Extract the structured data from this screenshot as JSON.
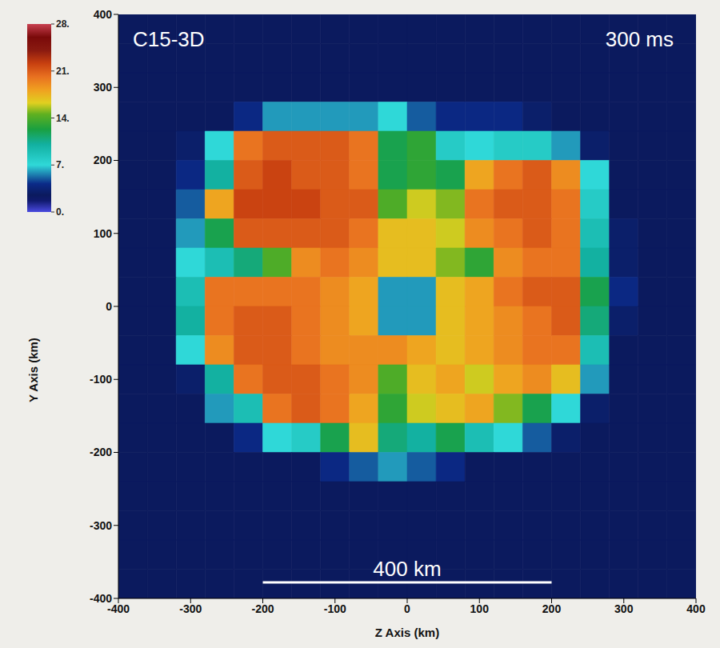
{
  "chart_data": {
    "type": "heatmap",
    "title": "C15-3D",
    "subtitle": "300 ms",
    "x_label": "Z Axis (km)",
    "y_label": "Y Axis (km)",
    "xlim": [
      -400,
      400
    ],
    "ylim": [
      -400,
      400
    ],
    "xticks": [
      -400,
      -300,
      -200,
      -100,
      0,
      100,
      200,
      300,
      400
    ],
    "yticks": [
      -400,
      -300,
      -200,
      -100,
      0,
      100,
      200,
      300,
      400
    ],
    "tick_labels": true,
    "grid": false,
    "scale_bar": {
      "label": "400 km",
      "z": [
        -200,
        200
      ],
      "y": -378
    },
    "colorbar": {
      "range": [
        0,
        28
      ],
      "ticks": [
        {
          "value": 0,
          "label": "0."
        },
        {
          "value": 7,
          "label": "7."
        },
        {
          "value": 14,
          "label": "14."
        },
        {
          "value": 21,
          "label": "21."
        },
        {
          "value": 28,
          "label": "28."
        }
      ]
    },
    "z_edges": [
      -400,
      -360,
      -320,
      -280,
      -240,
      -200,
      -160,
      -120,
      -80,
      -40,
      0,
      40,
      80,
      120,
      160,
      200,
      240,
      280,
      320,
      360,
      400
    ],
    "y_edges": [
      400,
      360,
      320,
      280,
      240,
      200,
      160,
      120,
      80,
      40,
      0,
      -40,
      -80,
      -120,
      -160,
      -200,
      -240,
      -280,
      -320,
      -360,
      -400
    ],
    "cells": [
      [
        2.5,
        2.5,
        2.5,
        2.5,
        2.5,
        2.5,
        2.5,
        2.5,
        2.5,
        2.5,
        2.5,
        2.5,
        2.5,
        2.5,
        2.5,
        2.5,
        2.5,
        2.5,
        2.5,
        2.5
      ],
      [
        2.5,
        2.5,
        2.5,
        2.5,
        2.5,
        2.5,
        2.5,
        2.5,
        2.5,
        2.5,
        2.5,
        2.5,
        2.5,
        2.5,
        2.5,
        2.5,
        2.5,
        2.5,
        2.5,
        2.5
      ],
      [
        2.5,
        2.5,
        2.5,
        2.5,
        2.5,
        2.5,
        2.5,
        2.5,
        2.5,
        2.5,
        2.5,
        2.5,
        2.5,
        2.5,
        2.5,
        2.5,
        2.5,
        2.5,
        2.5,
        2.5
      ],
      [
        2.5,
        2.5,
        2.5,
        2.5,
        4,
        6,
        6,
        6,
        6,
        7,
        5,
        4,
        4,
        4,
        3,
        2.5,
        2.5,
        2.5,
        2.5,
        2.5
      ],
      [
        2.5,
        2.5,
        3,
        7,
        20,
        21,
        21,
        21,
        20,
        12,
        13,
        8,
        7,
        8,
        8,
        6,
        3,
        2.5,
        2.5,
        2.5
      ],
      [
        2.5,
        2.5,
        4,
        10,
        21,
        22,
        21,
        21,
        20,
        12,
        13,
        12,
        18,
        20,
        21,
        19,
        7,
        2.5,
        2.5,
        2.5
      ],
      [
        2.5,
        2.5,
        5,
        18,
        22,
        22,
        22,
        21,
        21,
        14,
        16,
        15,
        20,
        21,
        21,
        20,
        8,
        2.5,
        2.5,
        2.5
      ],
      [
        2.5,
        2.5,
        6,
        12,
        21,
        21,
        21,
        21,
        20,
        17,
        17,
        16,
        19,
        20,
        21,
        20,
        9,
        3,
        2.5,
        2.5
      ],
      [
        2.5,
        2.5,
        7,
        9,
        11,
        14,
        19,
        20,
        19,
        17,
        17,
        15,
        13,
        19,
        20,
        20,
        10,
        3,
        2.5,
        2.5
      ],
      [
        2.5,
        2.5,
        9,
        20,
        20,
        20,
        20,
        19,
        18,
        6,
        6,
        17,
        18,
        20,
        21,
        21,
        12,
        4,
        2.5,
        2.5
      ],
      [
        2.5,
        2.5,
        10,
        20,
        21,
        21,
        20,
        19,
        18,
        6,
        6,
        17,
        18,
        19,
        20,
        21,
        11,
        3,
        2.5,
        2.5
      ],
      [
        2.5,
        2.5,
        7,
        19,
        21,
        21,
        20,
        19,
        19,
        19,
        18,
        17,
        18,
        19,
        20,
        20,
        9,
        2.5,
        2.5,
        2.5
      ],
      [
        2.5,
        2.5,
        3,
        10,
        20,
        21,
        21,
        20,
        19,
        14,
        17,
        18,
        16,
        18,
        19,
        17,
        6,
        2.5,
        2.5,
        2.5
      ],
      [
        2.5,
        2.5,
        2.5,
        6,
        9,
        20,
        21,
        20,
        18,
        13,
        16,
        17,
        18,
        15,
        12,
        7,
        3,
        2.5,
        2.5,
        2.5
      ],
      [
        2.5,
        2.5,
        2.5,
        2.5,
        4,
        7,
        8,
        12,
        17,
        11,
        10,
        12,
        9,
        7,
        5,
        3,
        2.5,
        2.5,
        2.5,
        2.5
      ],
      [
        2.5,
        2.5,
        2.5,
        2.5,
        2.5,
        2.5,
        2.5,
        4,
        5,
        6,
        5,
        4,
        2.5,
        2.5,
        2.5,
        2.5,
        2.5,
        2.5,
        2.5,
        2.5
      ],
      [
        2.5,
        2.5,
        2.5,
        2.5,
        2.5,
        2.5,
        2.5,
        2.5,
        2.5,
        2.5,
        2.5,
        2.5,
        2.5,
        2.5,
        2.5,
        2.5,
        2.5,
        2.5,
        2.5,
        2.5
      ],
      [
        2.5,
        2.5,
        2.5,
        2.5,
        2.5,
        2.5,
        2.5,
        2.5,
        2.5,
        2.5,
        2.5,
        2.5,
        2.5,
        2.5,
        2.5,
        2.5,
        2.5,
        2.5,
        2.5,
        2.5
      ],
      [
        2.5,
        2.5,
        2.5,
        2.5,
        2.5,
        2.5,
        2.5,
        2.5,
        2.5,
        2.5,
        2.5,
        2.5,
        2.5,
        2.5,
        2.5,
        2.5,
        2.5,
        2.5,
        2.5,
        2.5
      ],
      [
        2.5,
        2.5,
        2.5,
        2.5,
        2.5,
        2.5,
        2.5,
        2.5,
        2.5,
        2.5,
        2.5,
        2.5,
        2.5,
        2.5,
        2.5,
        2.5,
        2.5,
        2.5,
        2.5,
        2.5
      ]
    ]
  }
}
